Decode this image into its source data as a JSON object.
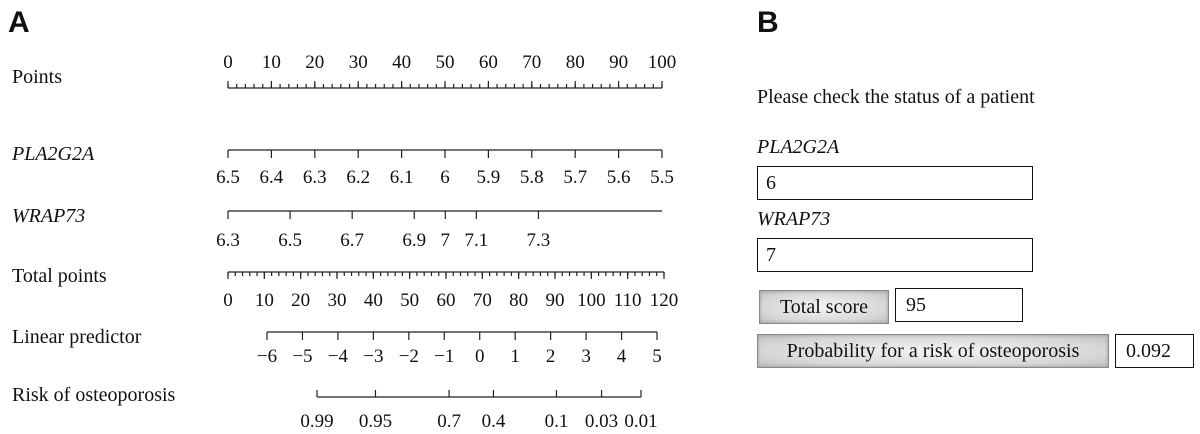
{
  "panel_a_label": "A",
  "panel_b_label": "B",
  "nomogram": {
    "rows": [
      {
        "key": "points",
        "label": "Points",
        "italic": false,
        "min": 0,
        "max": 100,
        "minor_step": 2,
        "labels": [
          {
            "text": "0",
            "v": 0
          },
          {
            "text": "10",
            "v": 10
          },
          {
            "text": "20",
            "v": 20
          },
          {
            "text": "30",
            "v": 30
          },
          {
            "text": "40",
            "v": 40
          },
          {
            "text": "50",
            "v": 50
          },
          {
            "text": "60",
            "v": 60
          },
          {
            "text": "70",
            "v": 70
          },
          {
            "text": "80",
            "v": 80
          },
          {
            "text": "90",
            "v": 90
          },
          {
            "text": "100",
            "v": 100
          }
        ]
      },
      {
        "key": "pla2g2a",
        "label": "PLA2G2A",
        "italic": true,
        "min": 0,
        "max": 100,
        "labels": [
          {
            "text": "6.5",
            "v": 0
          },
          {
            "text": "6.4",
            "v": 10
          },
          {
            "text": "6.3",
            "v": 20
          },
          {
            "text": "6.2",
            "v": 30
          },
          {
            "text": "6.1",
            "v": 40
          },
          {
            "text": "6",
            "v": 50
          },
          {
            "text": "5.9",
            "v": 60
          },
          {
            "text": "5.8",
            "v": 70
          },
          {
            "text": "5.7",
            "v": 80
          },
          {
            "text": "5.6",
            "v": 90
          },
          {
            "text": "5.5",
            "v": 100
          }
        ]
      },
      {
        "key": "wrap73",
        "label": "WRAP73",
        "italic": true,
        "min": 0,
        "max": 71.3,
        "labels": [
          {
            "text": "6.3",
            "v": 0
          },
          {
            "text": "6.5",
            "v": 10.2
          },
          {
            "text": "6.7",
            "v": 20.4
          },
          {
            "text": "6.9",
            "v": 30.6
          },
          {
            "text": "7",
            "v": 35.7
          },
          {
            "text": "7.1",
            "v": 40.8
          },
          {
            "text": "7.3",
            "v": 51
          }
        ]
      },
      {
        "key": "total",
        "label": "Total points",
        "italic": false,
        "min": 0,
        "max": 120,
        "minor_step": 2,
        "labels": [
          {
            "text": "0",
            "v": 0
          },
          {
            "text": "10",
            "v": 10
          },
          {
            "text": "20",
            "v": 20
          },
          {
            "text": "30",
            "v": 30
          },
          {
            "text": "40",
            "v": 40
          },
          {
            "text": "50",
            "v": 50
          },
          {
            "text": "60",
            "v": 60
          },
          {
            "text": "70",
            "v": 70
          },
          {
            "text": "80",
            "v": 80
          },
          {
            "text": "90",
            "v": 90
          },
          {
            "text": "100",
            "v": 100
          },
          {
            "text": "110",
            "v": 110
          },
          {
            "text": "120",
            "v": 120
          }
        ]
      },
      {
        "key": "linear",
        "label": "Linear predictor",
        "italic": false,
        "min": -6,
        "max": 5,
        "labels": [
          {
            "text": "−6",
            "v": -6
          },
          {
            "text": "−5",
            "v": -5
          },
          {
            "text": "−4",
            "v": -4
          },
          {
            "text": "−3",
            "v": -3
          },
          {
            "text": "−2",
            "v": -2
          },
          {
            "text": "−1",
            "v": -1
          },
          {
            "text": "0",
            "v": 0
          },
          {
            "text": "1",
            "v": 1
          },
          {
            "text": "2",
            "v": 2
          },
          {
            "text": "3",
            "v": 3
          },
          {
            "text": "4",
            "v": 4
          },
          {
            "text": "5",
            "v": 5
          }
        ]
      },
      {
        "key": "risk",
        "label": "Risk of osteoporosis",
        "italic": false,
        "min": -4.6,
        "max": 4.6,
        "labels": [
          {
            "text": "0.99",
            "v": -4.6
          },
          {
            "text": "0.95",
            "v": -2.94
          },
          {
            "text": "0.7",
            "v": -0.85
          },
          {
            "text": "0.4",
            "v": 0.41
          },
          {
            "text": "0.1",
            "v": 2.2
          },
          {
            "text": "0.03",
            "v": 3.48
          },
          {
            "text": "0.01",
            "v": 4.6
          }
        ]
      }
    ]
  },
  "calculator": {
    "prompt": "Please check the status of a patient",
    "pla2g2a_label": "PLA2G2A",
    "pla2g2a_value": "6",
    "wrap73_label": "WRAP73",
    "wrap73_value": "7",
    "total_button": "Total score",
    "total_value": "95",
    "prob_button": "Probability for a risk of osteoporosis",
    "prob_value": "0.092"
  }
}
